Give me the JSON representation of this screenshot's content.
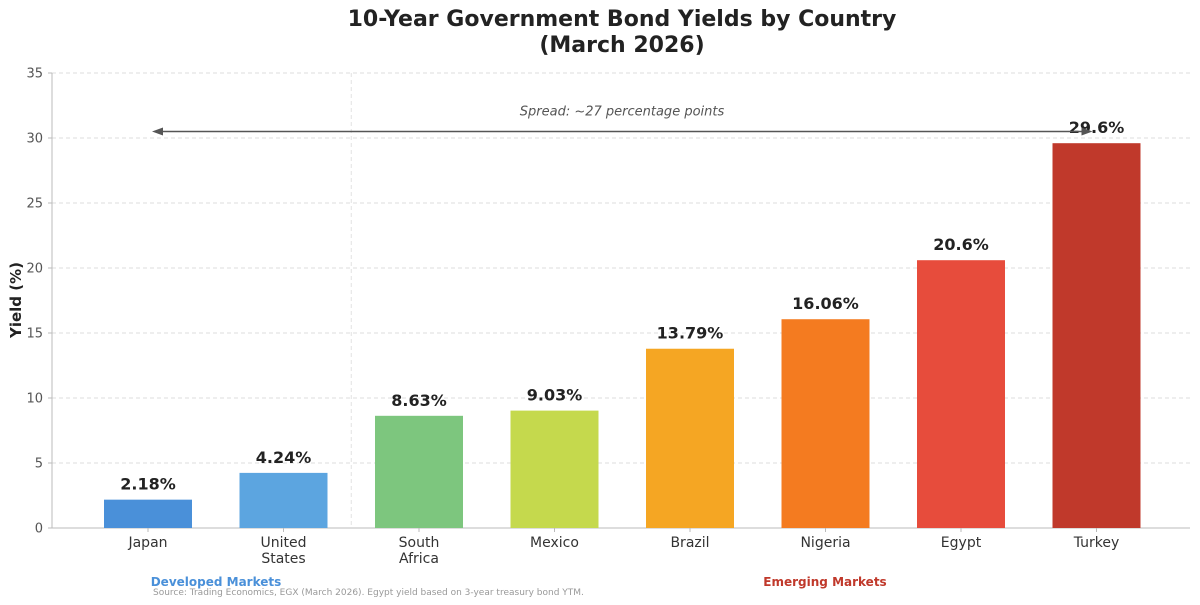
{
  "chart_data": {
    "type": "bar",
    "title": "10-Year Government Bond Yields by Country",
    "subtitle": "(March 2026)",
    "xlabel": "",
    "ylabel": "Yield (%)",
    "ylim": [
      0,
      35
    ],
    "yticks": [
      0,
      5,
      10,
      15,
      20,
      25,
      30,
      35
    ],
    "grid": true,
    "categories": [
      [
        "Japan"
      ],
      [
        "United",
        "States"
      ],
      [
        "South",
        "Africa"
      ],
      [
        "Mexico"
      ],
      [
        "Brazil"
      ],
      [
        "Nigeria"
      ],
      [
        "Egypt"
      ],
      [
        "Turkey"
      ]
    ],
    "values": [
      2.18,
      4.24,
      8.63,
      9.03,
      13.79,
      16.06,
      20.6,
      29.6
    ],
    "value_labels": [
      "2.18%",
      "4.24%",
      "8.63%",
      "9.03%",
      "13.79%",
      "16.06%",
      "20.6%",
      "29.6%"
    ],
    "colors": [
      "#4a90d9",
      "#5ca5e0",
      "#7dc67e",
      "#c5d94d",
      "#f5a623",
      "#f47b20",
      "#e74c3c",
      "#c0392b"
    ],
    "groups": [
      {
        "label": "Developed Markets",
        "color": "#4a90d9"
      },
      {
        "label": "Emerging Markets",
        "color": "#c0392b"
      }
    ],
    "annotation": {
      "text": "Spread: ~27 percentage points",
      "from_value": 30.5,
      "to_value": 30.5
    },
    "source": "Source: Trading Economics, EGX (March 2026). Egypt yield based on 3-year treasury bond YTM."
  }
}
